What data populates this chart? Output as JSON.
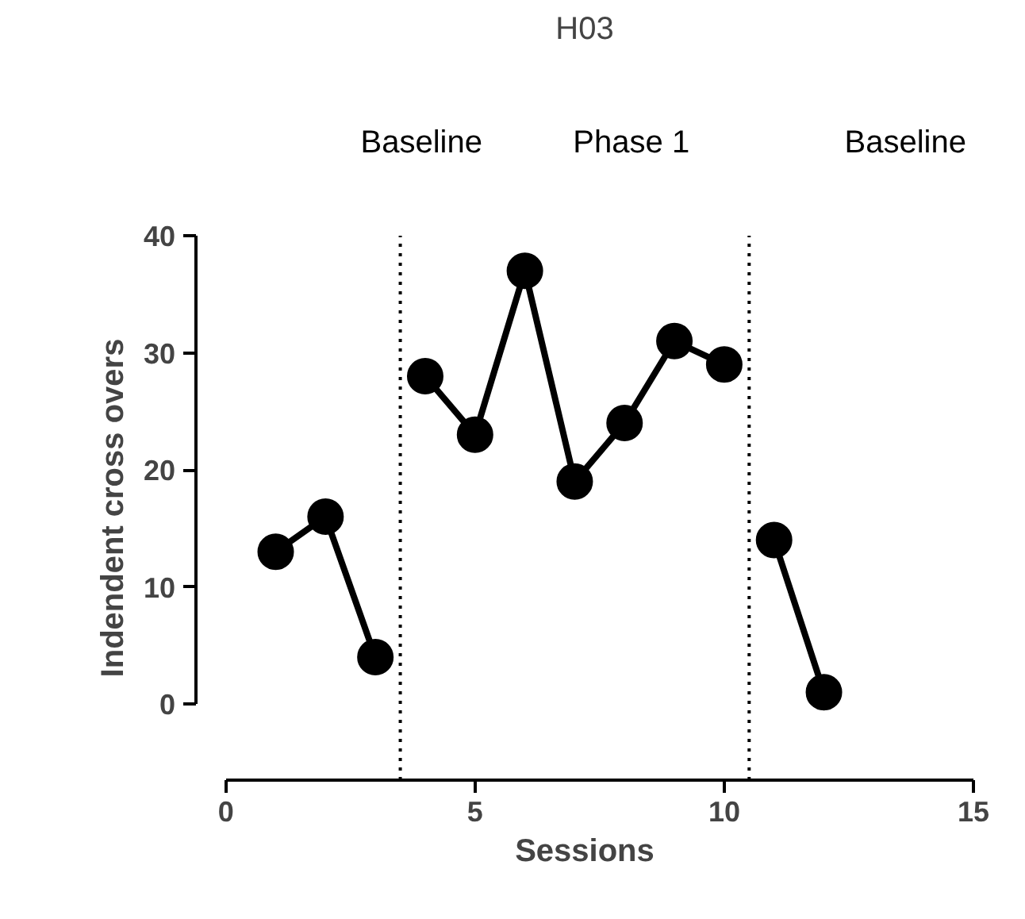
{
  "chart_data": {
    "type": "line",
    "title": "H03",
    "xlabel": "Sessions",
    "ylabel": "Indendent cross overs",
    "xlim": [
      -0.6,
      15
    ],
    "ylim": [
      -6.5,
      40
    ],
    "xticks": [
      0,
      5,
      10,
      15
    ],
    "yticks": [
      0,
      10,
      20,
      30,
      40
    ],
    "grid": false,
    "marker": "circle",
    "line_style": "solid",
    "series": [
      {
        "color": "#000000",
        "x": [
          1,
          2,
          3
        ],
        "values": [
          13,
          16,
          4
        ]
      },
      {
        "color": "#000000",
        "x": [
          4,
          5,
          6,
          7,
          8,
          9,
          10
        ],
        "values": [
          28,
          23,
          37,
          19,
          24,
          31,
          29
        ]
      },
      {
        "color": "#000000",
        "x": [
          11,
          12
        ],
        "values": [
          14,
          1
        ]
      }
    ],
    "ref_lines": [
      {
        "axis": "x",
        "value": 3.5,
        "line_style": "dotted"
      },
      {
        "axis": "x",
        "value": 10.5,
        "line_style": "dotted"
      }
    ],
    "annotations": [
      "Baseline",
      "Phase 1",
      "Baseline"
    ]
  }
}
